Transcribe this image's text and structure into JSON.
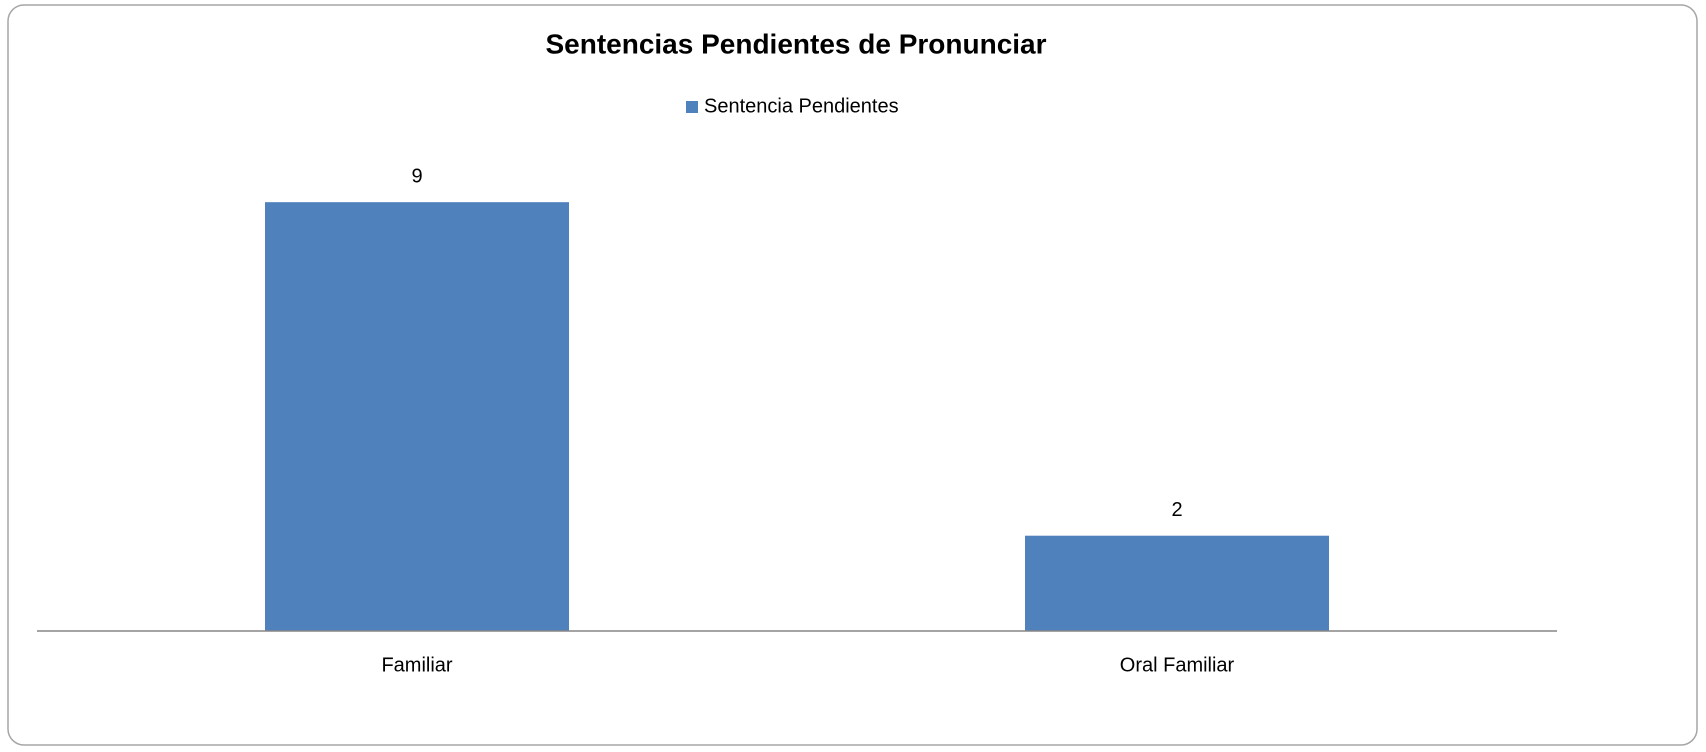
{
  "chart_data": {
    "type": "bar",
    "title": "Sentencias Pendientes de Pronunciar",
    "categories": [
      "Familiar",
      "Oral Familiar"
    ],
    "series": [
      {
        "name": "Sentencia Pendientes",
        "color": "#4f81bd",
        "values": [
          9,
          2
        ]
      }
    ]
  }
}
